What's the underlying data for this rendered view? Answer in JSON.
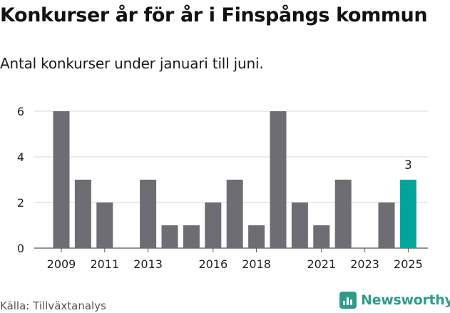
{
  "title": "Konkurser år för år i Finspångs kommun",
  "subtitle": "Antal konkurser under januari till juni.",
  "source": "Källa: Tillväxtanalys",
  "logo": {
    "text": "Newsworthy",
    "color": "#2f9c8b"
  },
  "chart_data": {
    "type": "bar",
    "categories": [
      "2009",
      "2010",
      "2011",
      "2012",
      "2013",
      "2014",
      "2015",
      "2016",
      "2017",
      "2018",
      "2019",
      "2020",
      "2021",
      "2022",
      "2023",
      "2024",
      "2025"
    ],
    "values": [
      6,
      3,
      2,
      0,
      3,
      1,
      1,
      2,
      3,
      1,
      6,
      2,
      1,
      3,
      0,
      2,
      3
    ],
    "x_tick_labels": [
      "2009",
      "2011",
      "2013",
      "2016",
      "2018",
      "2021",
      "2023",
      "2025"
    ],
    "y_ticks": [
      0,
      2,
      4,
      6
    ],
    "ylim": [
      0,
      6
    ],
    "highlight": {
      "category": "2025",
      "label": "3",
      "color": "#00a59a"
    },
    "bar_color": "#6e6d73",
    "grid": true
  }
}
